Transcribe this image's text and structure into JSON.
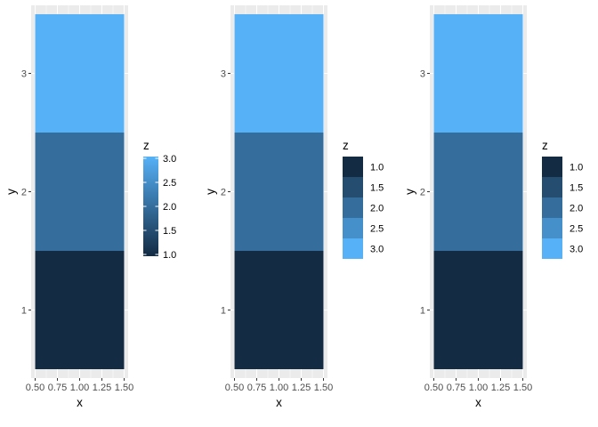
{
  "theme": {
    "panel_bg": "#EBEBEB",
    "grid_major": "#FFFFFF",
    "tick_color": "#333333",
    "low_color": "#132B43",
    "high_color": "#56B1F7"
  },
  "chart_data": [
    {
      "type": "heatmap",
      "title": "",
      "xlabel": "x",
      "ylabel": "y",
      "xlim": [
        0.5,
        1.5
      ],
      "ylim": [
        0.5,
        3.5
      ],
      "x_ticks": [
        0.5,
        0.75,
        1.0,
        1.25,
        1.5
      ],
      "x_tick_labels": [
        "0.50",
        "0.75",
        "1.00",
        "1.25",
        "1.50"
      ],
      "y_ticks": [
        1,
        2,
        3
      ],
      "y_tick_labels": [
        "1",
        "2",
        "3"
      ],
      "tiles": [
        {
          "x": 1,
          "y": 1,
          "z": 1
        },
        {
          "x": 1,
          "y": 2,
          "z": 2
        },
        {
          "x": 1,
          "y": 3,
          "z": 3
        }
      ],
      "legend": {
        "title": "z",
        "kind": "colorbar",
        "breaks": [
          1.0,
          1.5,
          2.0,
          2.5,
          3.0
        ],
        "labels": [
          "1.0",
          "1.5",
          "2.0",
          "2.5",
          "3.0"
        ]
      }
    },
    {
      "type": "heatmap",
      "title": "",
      "xlabel": "x",
      "ylabel": "y",
      "xlim": [
        0.5,
        1.5
      ],
      "ylim": [
        0.5,
        3.5
      ],
      "x_ticks": [
        0.5,
        0.75,
        1.0,
        1.25,
        1.5
      ],
      "x_tick_labels": [
        "0.50",
        "0.75",
        "1.00",
        "1.25",
        "1.50"
      ],
      "y_ticks": [
        1,
        2,
        3
      ],
      "y_tick_labels": [
        "1",
        "2",
        "3"
      ],
      "tiles": [
        {
          "x": 1,
          "y": 1,
          "z": 1
        },
        {
          "x": 1,
          "y": 2,
          "z": 2
        },
        {
          "x": 1,
          "y": 3,
          "z": 3
        }
      ],
      "legend": {
        "title": "z",
        "kind": "binned",
        "breaks": [
          1.0,
          1.5,
          2.0,
          2.5,
          3.0
        ],
        "labels": [
          "1.0",
          "1.5",
          "2.0",
          "2.5",
          "3.0"
        ]
      }
    },
    {
      "type": "heatmap",
      "title": "",
      "xlabel": "x",
      "ylabel": "y",
      "xlim": [
        0.5,
        1.5
      ],
      "ylim": [
        0.5,
        3.5
      ],
      "x_ticks": [
        0.5,
        0.75,
        1.0,
        1.25,
        1.5
      ],
      "x_tick_labels": [
        "0.50",
        "0.75",
        "1.00",
        "1.25",
        "1.50"
      ],
      "y_ticks": [
        1,
        2,
        3
      ],
      "y_tick_labels": [
        "1",
        "2",
        "3"
      ],
      "tiles": [
        {
          "x": 1,
          "y": 1,
          "z": 1
        },
        {
          "x": 1,
          "y": 2,
          "z": 2
        },
        {
          "x": 1,
          "y": 3,
          "z": 3
        }
      ],
      "legend": {
        "title": "z",
        "kind": "binned",
        "breaks": [
          1.0,
          1.5,
          2.0,
          2.5,
          3.0
        ],
        "labels": [
          "1.0",
          "1.5",
          "2.0",
          "2.5",
          "3.0"
        ]
      }
    }
  ]
}
